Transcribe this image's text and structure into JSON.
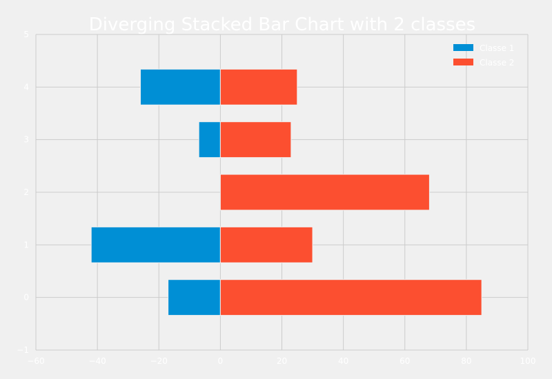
{
  "chart_data": {
    "type": "bar",
    "orientation": "horizontal",
    "stacking": "diverging",
    "title": "Diverging Stacked Bar Chart with 2 classes",
    "xlabel": "",
    "ylabel": "",
    "categories": [
      0,
      1,
      2,
      3,
      4
    ],
    "series": [
      {
        "name": "Classe 1",
        "values": [
          -17,
          -42,
          0,
          -7,
          -26
        ],
        "color": "#008fd5"
      },
      {
        "name": "Classe 2",
        "values": [
          85,
          30,
          68,
          23,
          25
        ],
        "color": "#fc4f30"
      }
    ],
    "xlim": [
      -60,
      100
    ],
    "ylim": [
      -1,
      5
    ],
    "xticks": [
      "−60",
      "−40",
      "−20",
      "0",
      "20",
      "40",
      "60",
      "80",
      "100"
    ],
    "xtick_values": [
      -60,
      -40,
      -20,
      0,
      20,
      40,
      60,
      80,
      100
    ],
    "yticks": [
      "−1",
      "0",
      "1",
      "2",
      "3",
      "4",
      "5"
    ],
    "ytick_values": [
      -1,
      0,
      1,
      2,
      3,
      4,
      5
    ],
    "grid": true,
    "legend_position": "top-right",
    "background": "#f0f0f0",
    "text_color": "#ffffff",
    "grid_color": "#cbcbcb"
  }
}
